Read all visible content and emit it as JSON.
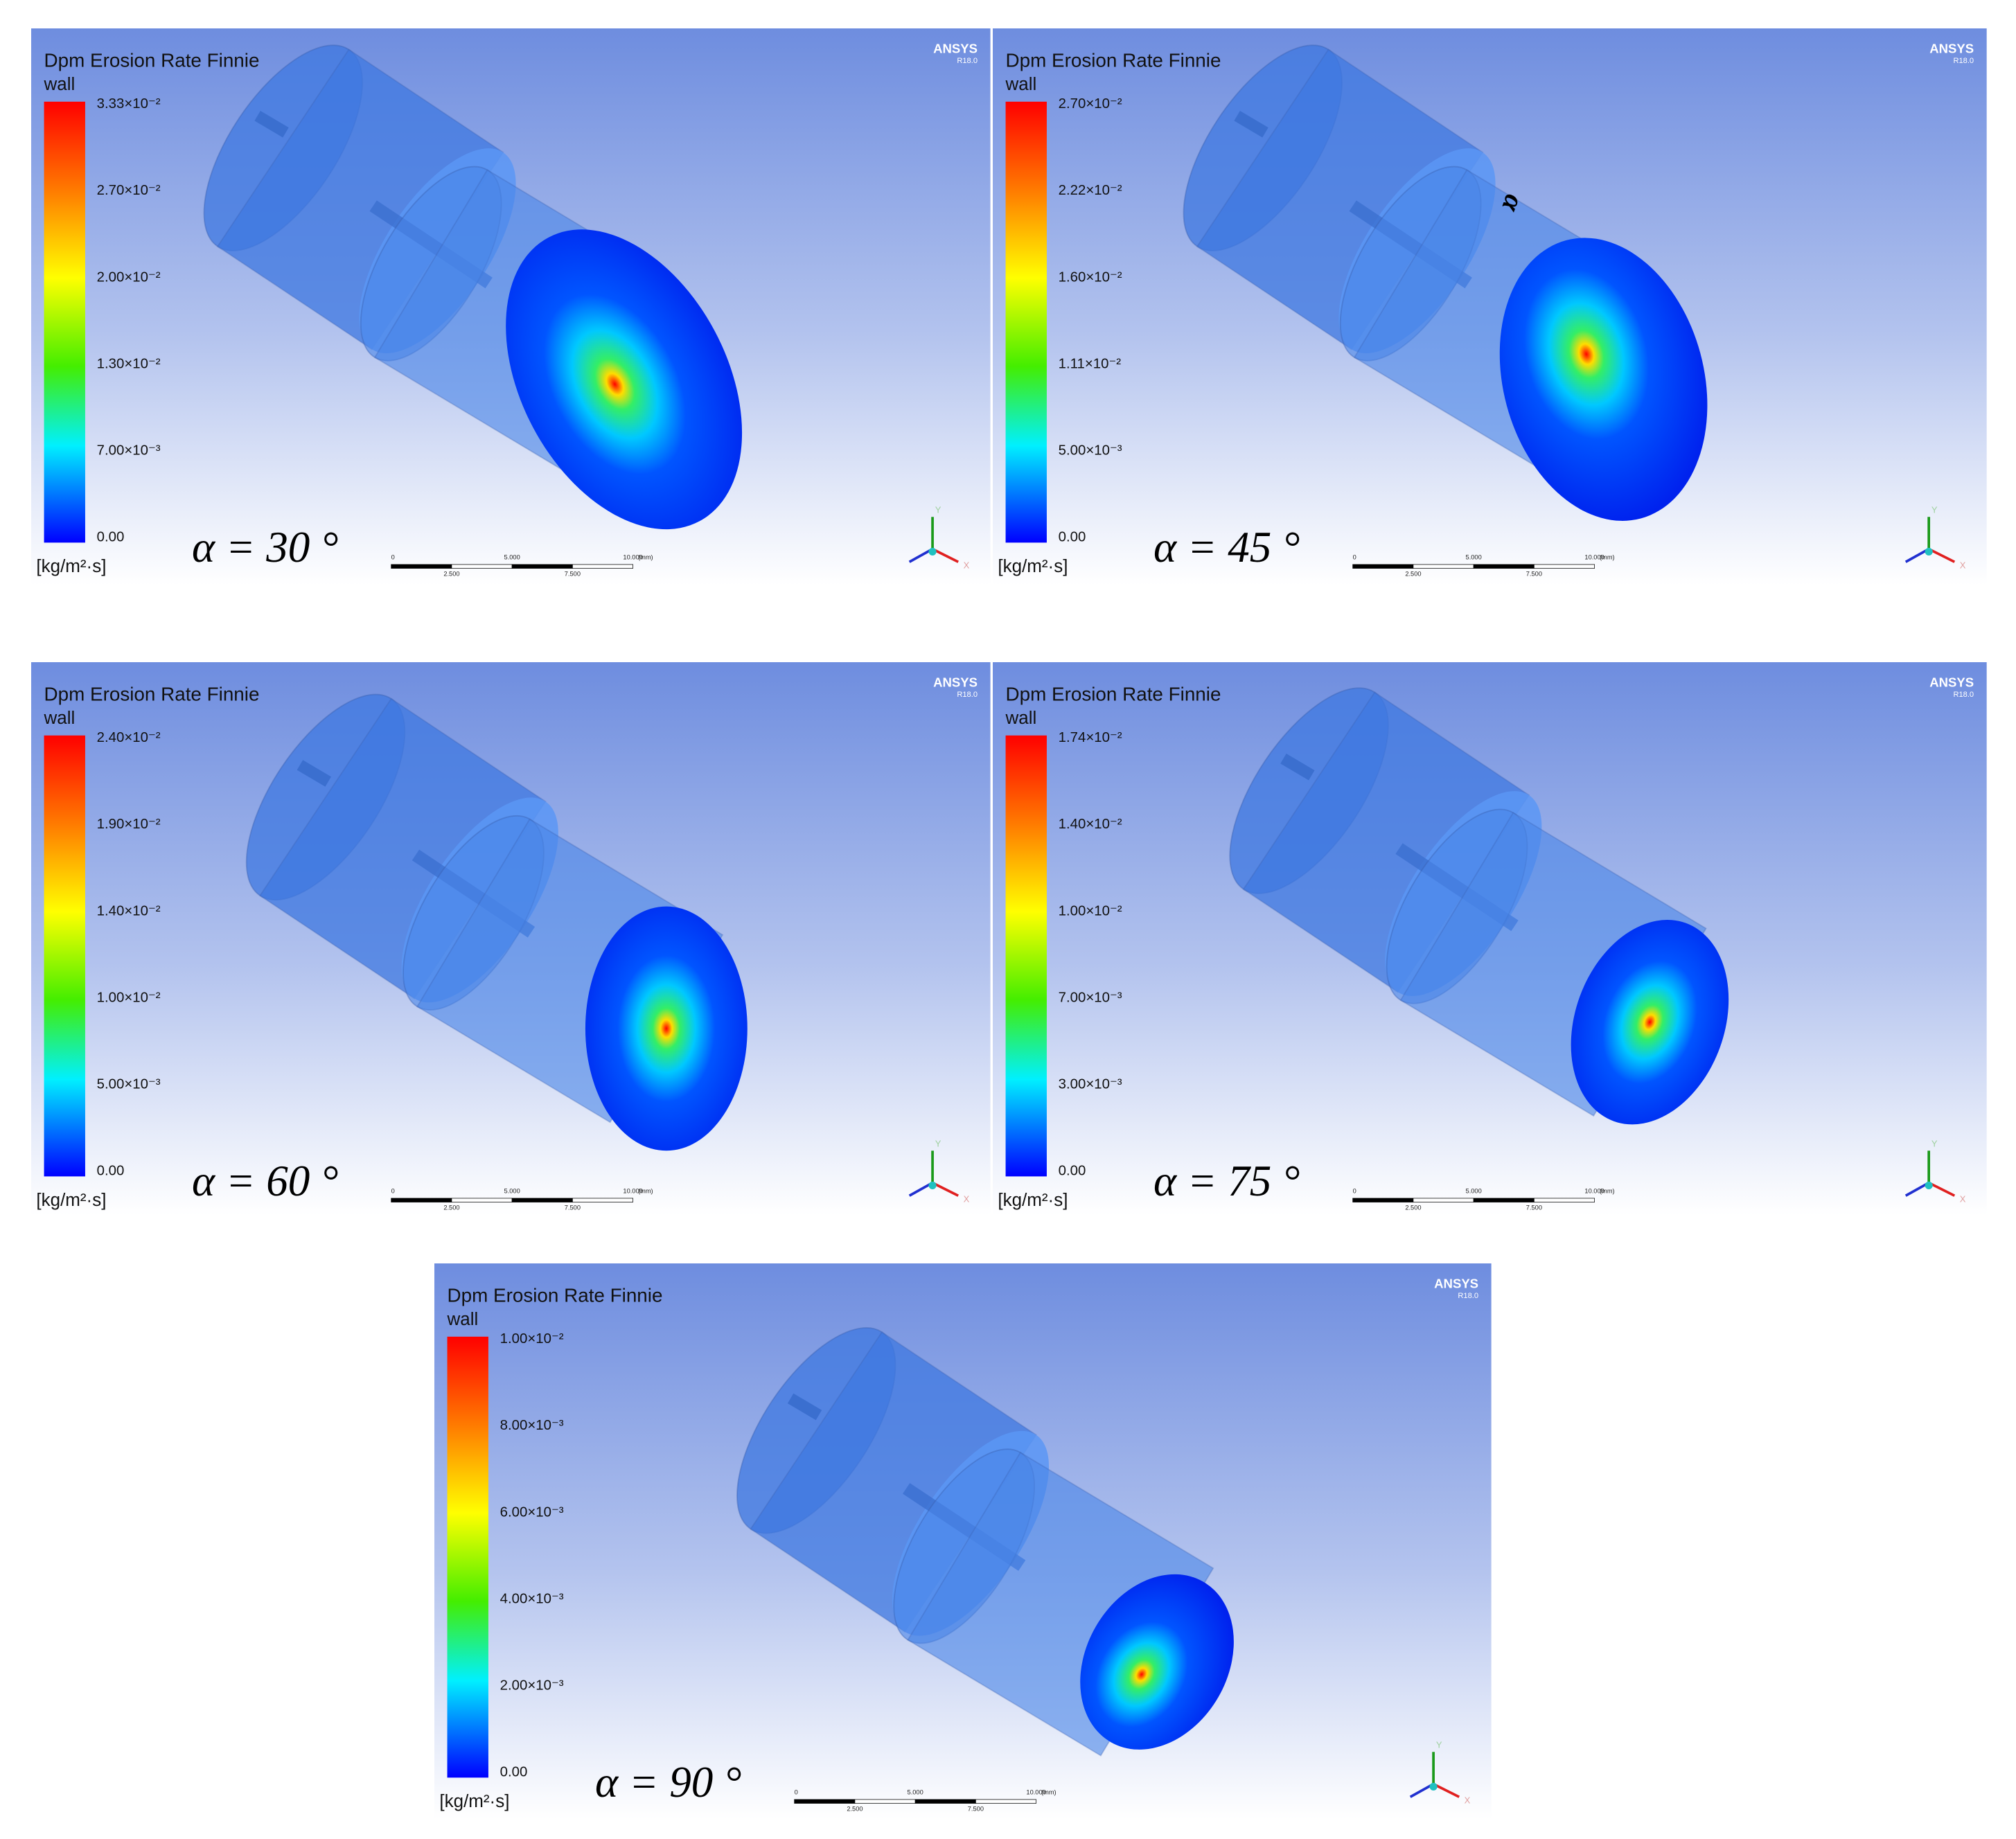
{
  "panels": [
    {
      "title": "Dpm Erosion Rate Finnie",
      "subtitle": "wall",
      "legend_labels": [
        "3.33×10⁻²",
        "2.70×10⁻²",
        "2.00×10⁻²",
        "1.30×10⁻²",
        "7.00×10⁻³",
        "0.00"
      ],
      "unit": "[kg/m²·s]",
      "angle_label": "α = 30 °",
      "logo": "ANSYS",
      "version": "R18.0",
      "scale_labels": [
        "0",
        "2.500",
        "5.000",
        "7.500",
        "10.000",
        "(mm)"
      ],
      "axis_labels": [
        "Y",
        "X"
      ]
    },
    {
      "title": "Dpm Erosion Rate Finnie",
      "subtitle": "wall",
      "legend_labels": [
        "2.70×10⁻²",
        "2.22×10⁻²",
        "1.60×10⁻²",
        "1.11×10⁻²",
        "5.00×10⁻³",
        "0.00"
      ],
      "unit": "[kg/m²·s]",
      "angle_label": "α = 45 °",
      "logo": "ANSYS",
      "version": "R18.0",
      "scale_labels": [
        "0",
        "2.500",
        "5.000",
        "7.500",
        "10.000",
        "(mm)"
      ],
      "axis_labels": [
        "Y",
        "X"
      ],
      "annotation": "α"
    },
    {
      "title": "Dpm Erosion Rate Finnie",
      "subtitle": "wall",
      "legend_labels": [
        "2.40×10⁻²",
        "1.90×10⁻²",
        "1.40×10⁻²",
        "1.00×10⁻²",
        "5.00×10⁻³",
        "0.00"
      ],
      "unit": "[kg/m²·s]",
      "angle_label": "α = 60 °",
      "logo": "ANSYS",
      "version": "R18.0",
      "scale_labels": [
        "0",
        "2.500",
        "5.000",
        "7.500",
        "10.000",
        "(mm)"
      ],
      "axis_labels": [
        "Y",
        "X"
      ]
    },
    {
      "title": "Dpm Erosion Rate Finnie",
      "subtitle": "wall",
      "legend_labels": [
        "1.74×10⁻²",
        "1.40×10⁻²",
        "1.00×10⁻²",
        "7.00×10⁻³",
        "3.00×10⁻³",
        "0.00"
      ],
      "unit": "[kg/m²·s]",
      "angle_label": "α = 75 °",
      "logo": "ANSYS",
      "version": "R18.0",
      "scale_labels": [
        "0",
        "2.500",
        "5.000",
        "7.500",
        "10.000",
        "(mm)"
      ],
      "axis_labels": [
        "Y",
        "X"
      ]
    },
    {
      "title": "Dpm Erosion Rate Finnie",
      "subtitle": "wall",
      "legend_labels": [
        "1.00×10⁻²",
        "8.00×10⁻³",
        "6.00×10⁻³",
        "4.00×10⁻³",
        "2.00×10⁻³",
        "0.00"
      ],
      "unit": "[kg/m²·s]",
      "angle_label": "α = 90 °",
      "logo": "ANSYS",
      "version": "R18.0",
      "scale_labels": [
        "0",
        "2.500",
        "5.000",
        "7.500",
        "10.000",
        "(mm)"
      ],
      "axis_labels": [
        "Y",
        "X"
      ]
    }
  ]
}
